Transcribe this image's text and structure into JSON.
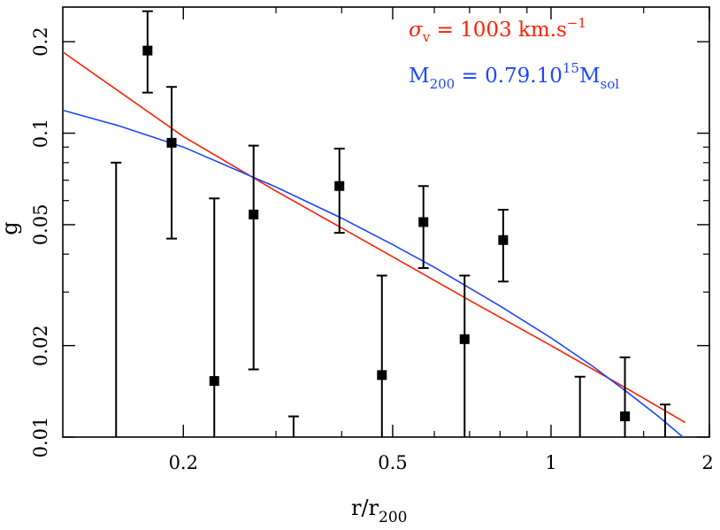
{
  "chart_data": {
    "type": "scatter",
    "title": "",
    "xlabel": "r/r",
    "xlabel_sub": "200",
    "ylabel": "g",
    "xscale": "log",
    "yscale": "log",
    "xlim": [
      0.118,
      2.0
    ],
    "ylim": [
      0.01,
      0.26
    ],
    "xticks": [
      0.2,
      0.5,
      1,
      2
    ],
    "xtick_labels": [
      "0.2",
      "0.5",
      "1",
      "2"
    ],
    "yticks": [
      0.01,
      0.02,
      0.05,
      0.1,
      0.2
    ],
    "ytick_labels": [
      "0.01",
      "0.02",
      "0.05",
      "0.1",
      "0.2"
    ],
    "grid": false,
    "legend_position": "top-right",
    "points": [
      {
        "x": 0.149,
        "y": null,
        "yerr_low": 0.0,
        "yerr_high": 0.08
      },
      {
        "x": 0.171,
        "y": 0.187,
        "yerr_low": 0.136,
        "yerr_high": 0.252
      },
      {
        "x": 0.19,
        "y": 0.093,
        "yerr_low": 0.045,
        "yerr_high": 0.142
      },
      {
        "x": 0.229,
        "y": 0.0153,
        "yerr_low": 0.0,
        "yerr_high": 0.061
      },
      {
        "x": 0.272,
        "y": 0.054,
        "yerr_low": 0.0167,
        "yerr_high": 0.091
      },
      {
        "x": 0.324,
        "y": null,
        "yerr_low": 0.0,
        "yerr_high": 0.0117
      },
      {
        "x": 0.396,
        "y": 0.067,
        "yerr_low": 0.047,
        "yerr_high": 0.089
      },
      {
        "x": 0.477,
        "y": 0.016,
        "yerr_low": 0.0,
        "yerr_high": 0.034
      },
      {
        "x": 0.572,
        "y": 0.051,
        "yerr_low": 0.036,
        "yerr_high": 0.067
      },
      {
        "x": 0.685,
        "y": 0.021,
        "yerr_low": 0.0,
        "yerr_high": 0.034
      },
      {
        "x": 0.811,
        "y": 0.0445,
        "yerr_low": 0.0325,
        "yerr_high": 0.056
      },
      {
        "x": 1.135,
        "y": null,
        "yerr_low": 0.0,
        "yerr_high": 0.0158
      },
      {
        "x": 1.382,
        "y": 0.0117,
        "yerr_low": 0.0,
        "yerr_high": 0.0183
      },
      {
        "x": 1.648,
        "y": null,
        "yerr_low": 0.0,
        "yerr_high": 0.0128
      }
    ],
    "series": [
      {
        "name": "σv = 1003 km.s−1",
        "color": "#ff2200",
        "x": [
          0.118,
          0.2,
          0.3,
          0.5,
          0.7,
          1.0,
          1.4,
          1.8
        ],
        "y": [
          0.185,
          0.0975,
          0.0645,
          0.0392,
          0.0282,
          0.02,
          0.01438,
          0.01116
        ]
      },
      {
        "name": "M200 = 0.79.1015Msol",
        "color": "#1e46ff",
        "x": [
          0.118,
          0.15,
          0.2,
          0.3,
          0.4,
          0.5,
          0.6,
          0.8,
          1.0,
          1.2,
          1.4,
          1.6,
          1.8
        ],
        "y": [
          0.119,
          0.106,
          0.09,
          0.0665,
          0.0525,
          0.043,
          0.0362,
          0.027,
          0.0212,
          0.0171,
          0.014,
          0.0117,
          0.00985
        ]
      }
    ]
  },
  "legend": {
    "red": {
      "symbol": "σ",
      "sub": "v",
      "text": " = 1003 km.s",
      "sup": "−1"
    },
    "blue": {
      "prefix": "M",
      "sub": "200",
      "text": " = 0.79.10",
      "sup": "15",
      "suffix": "M",
      "suffix_sub": "sol"
    }
  },
  "colors": {
    "red": "#ff2200",
    "blue": "#1e46ff",
    "markers": "#000000"
  }
}
